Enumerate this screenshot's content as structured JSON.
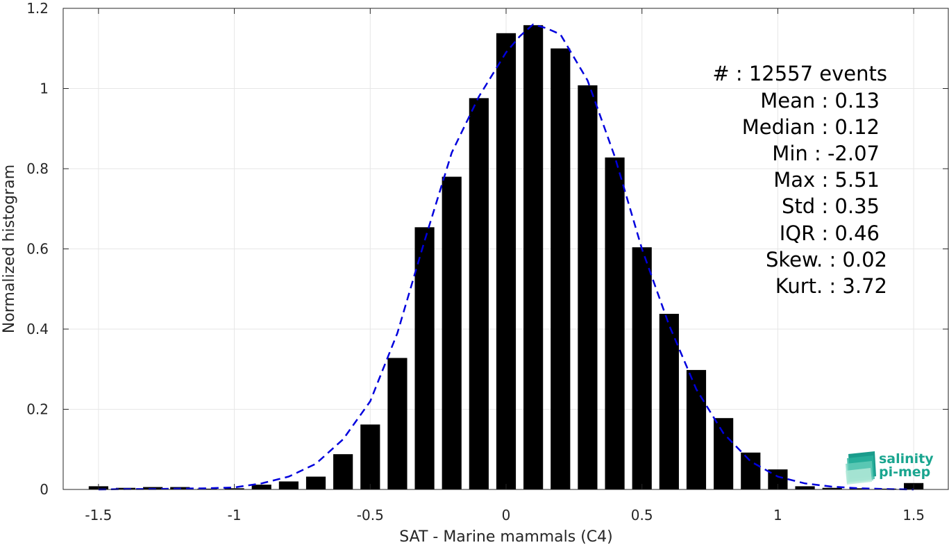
{
  "chart_data": {
    "type": "bar",
    "xlabel": "SAT - Marine mammals (C4)",
    "ylabel": "Normalized histogram",
    "xlim": [
      -1.63,
      1.63
    ],
    "ylim": [
      0,
      1.2
    ],
    "xticks": [
      -1.5,
      -1,
      -0.5,
      0,
      0.5,
      1,
      1.5
    ],
    "xtick_labels": [
      "-1.5",
      "-1",
      "-0.5",
      "0",
      "0.5",
      "1",
      "1.5"
    ],
    "yticks": [
      0,
      0.2,
      0.4,
      0.6,
      0.8,
      1,
      1.2
    ],
    "ytick_labels": [
      "0",
      "0.2",
      "0.4",
      "0.6",
      "0.8",
      "1",
      "1.2"
    ],
    "grid": true,
    "bar_color": "#000000",
    "curve_color": "#0000dd",
    "bars": {
      "x": [
        -1.5,
        -1.4,
        -1.3,
        -1.2,
        -1.1,
        -1.0,
        -0.9,
        -0.8,
        -0.7,
        -0.6,
        -0.5,
        -0.4,
        -0.3,
        -0.2,
        -0.1,
        0.0,
        0.1,
        0.2,
        0.3,
        0.4,
        0.5,
        0.6,
        0.7,
        0.8,
        0.9,
        1.0,
        1.1,
        1.2,
        1.3,
        1.4,
        1.5
      ],
      "values": [
        0.008,
        0.004,
        0.006,
        0.006,
        0.002,
        0.003,
        0.012,
        0.02,
        0.032,
        0.088,
        0.162,
        0.328,
        0.654,
        0.78,
        0.976,
        1.138,
        1.158,
        1.1,
        1.008,
        0.828,
        0.604,
        0.438,
        0.298,
        0.178,
        0.092,
        0.05,
        0.008,
        0.004,
        0.003,
        0.002,
        0.016
      ]
    },
    "fit_curve": {
      "x": [
        -1.5,
        -1.4,
        -1.3,
        -1.2,
        -1.1,
        -1.0,
        -0.9,
        -0.8,
        -0.7,
        -0.6,
        -0.5,
        -0.4,
        -0.3,
        -0.2,
        -0.1,
        0.0,
        0.05,
        0.1,
        0.15,
        0.2,
        0.3,
        0.4,
        0.5,
        0.6,
        0.7,
        0.8,
        0.9,
        1.0,
        1.1,
        1.2,
        1.3,
        1.4,
        1.5
      ],
      "y": [
        0.0,
        0.001,
        0.001,
        0.002,
        0.003,
        0.005,
        0.015,
        0.032,
        0.064,
        0.125,
        0.22,
        0.39,
        0.62,
        0.84,
        0.98,
        1.09,
        1.13,
        1.16,
        1.15,
        1.135,
        1.02,
        0.83,
        0.6,
        0.41,
        0.25,
        0.14,
        0.07,
        0.032,
        0.015,
        0.007,
        0.003,
        0.001,
        0.0
      ]
    },
    "stats": [
      "#  : 12557 events",
      "Mean : 0.13",
      "Median : 0.12",
      "Min : -2.07",
      "Max : 5.51",
      "Std : 0.35",
      "IQR : 0.46",
      "Skew. : 0.02",
      "Kurt. : 3.72"
    ],
    "logo": {
      "line1": "salinity",
      "line2": "pi-mep"
    }
  }
}
